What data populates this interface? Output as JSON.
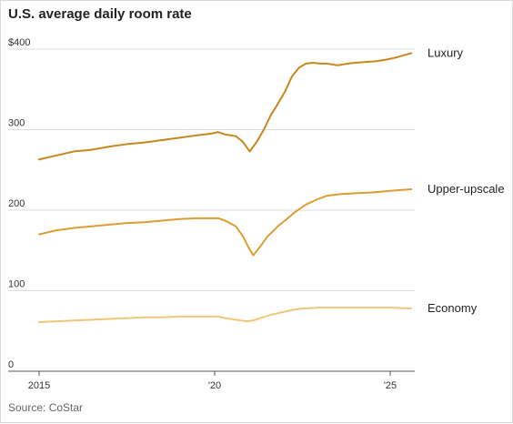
{
  "chart_data": {
    "type": "line",
    "title": "U.S. average daily room rate",
    "source": "Source: CoStar",
    "xlabel": "",
    "ylabel": "",
    "xlim": [
      2015,
      2025.7
    ],
    "ylim": [
      0,
      400
    ],
    "grid": true,
    "y_ticks": [
      {
        "value": 0,
        "label": "0"
      },
      {
        "value": 100,
        "label": "100"
      },
      {
        "value": 200,
        "label": "200"
      },
      {
        "value": 300,
        "label": "300"
      },
      {
        "value": 400,
        "label": "$400"
      }
    ],
    "x_ticks": [
      {
        "value": 2015,
        "label": "2015"
      },
      {
        "value": 2020,
        "label": "'20"
      },
      {
        "value": 2025,
        "label": "'25"
      }
    ],
    "series": [
      {
        "name": "Luxury",
        "color": "#c8871f",
        "x": [
          2015.0,
          2015.5,
          2016.0,
          2016.5,
          2017.0,
          2017.5,
          2018.0,
          2018.5,
          2019.0,
          2019.5,
          2019.9,
          2020.1,
          2020.3,
          2020.6,
          2020.8,
          2021.0,
          2021.2,
          2021.4,
          2021.6,
          2021.8,
          2022.0,
          2022.2,
          2022.4,
          2022.6,
          2022.8,
          2023.0,
          2023.2,
          2023.5,
          2023.8,
          2024.0,
          2024.3,
          2024.6,
          2024.9,
          2025.2,
          2025.6
        ],
        "y": [
          263,
          268,
          273,
          275,
          279,
          282,
          284,
          287,
          290,
          293,
          295,
          297,
          294,
          292,
          285,
          273,
          285,
          300,
          318,
          332,
          347,
          366,
          377,
          382,
          383,
          382,
          382,
          380,
          382,
          383,
          384,
          385,
          387,
          390,
          395
        ]
      },
      {
        "name": "Upper-upscale",
        "color": "#dd9d35",
        "x": [
          2015.0,
          2015.5,
          2016.0,
          2016.5,
          2017.0,
          2017.5,
          2018.0,
          2018.5,
          2019.0,
          2019.5,
          2019.9,
          2020.1,
          2020.3,
          2020.6,
          2020.8,
          2020.95,
          2021.1,
          2021.3,
          2021.5,
          2021.8,
          2022.0,
          2022.3,
          2022.6,
          2022.9,
          2023.2,
          2023.6,
          2024.0,
          2024.5,
          2025.0,
          2025.6
        ],
        "y": [
          170,
          175,
          178,
          180,
          182,
          184,
          185,
          187,
          189,
          190,
          190,
          190,
          187,
          180,
          168,
          155,
          144,
          155,
          167,
          180,
          187,
          198,
          207,
          213,
          218,
          220,
          221,
          222,
          224,
          226
        ]
      },
      {
        "name": "Economy",
        "color": "#f0c677",
        "x": [
          2015.0,
          2015.5,
          2016.0,
          2016.5,
          2017.0,
          2017.5,
          2018.0,
          2018.5,
          2019.0,
          2019.5,
          2019.9,
          2020.1,
          2020.3,
          2020.6,
          2020.9,
          2021.1,
          2021.3,
          2021.6,
          2021.9,
          2022.2,
          2022.5,
          2023.0,
          2023.5,
          2024.0,
          2024.5,
          2025.0,
          2025.6
        ],
        "y": [
          61,
          62,
          63,
          64,
          65,
          66,
          67,
          67,
          68,
          68,
          68,
          68,
          66,
          64,
          62,
          63,
          66,
          70,
          73,
          76,
          78,
          79,
          79,
          79,
          79,
          79,
          78
        ]
      }
    ]
  }
}
